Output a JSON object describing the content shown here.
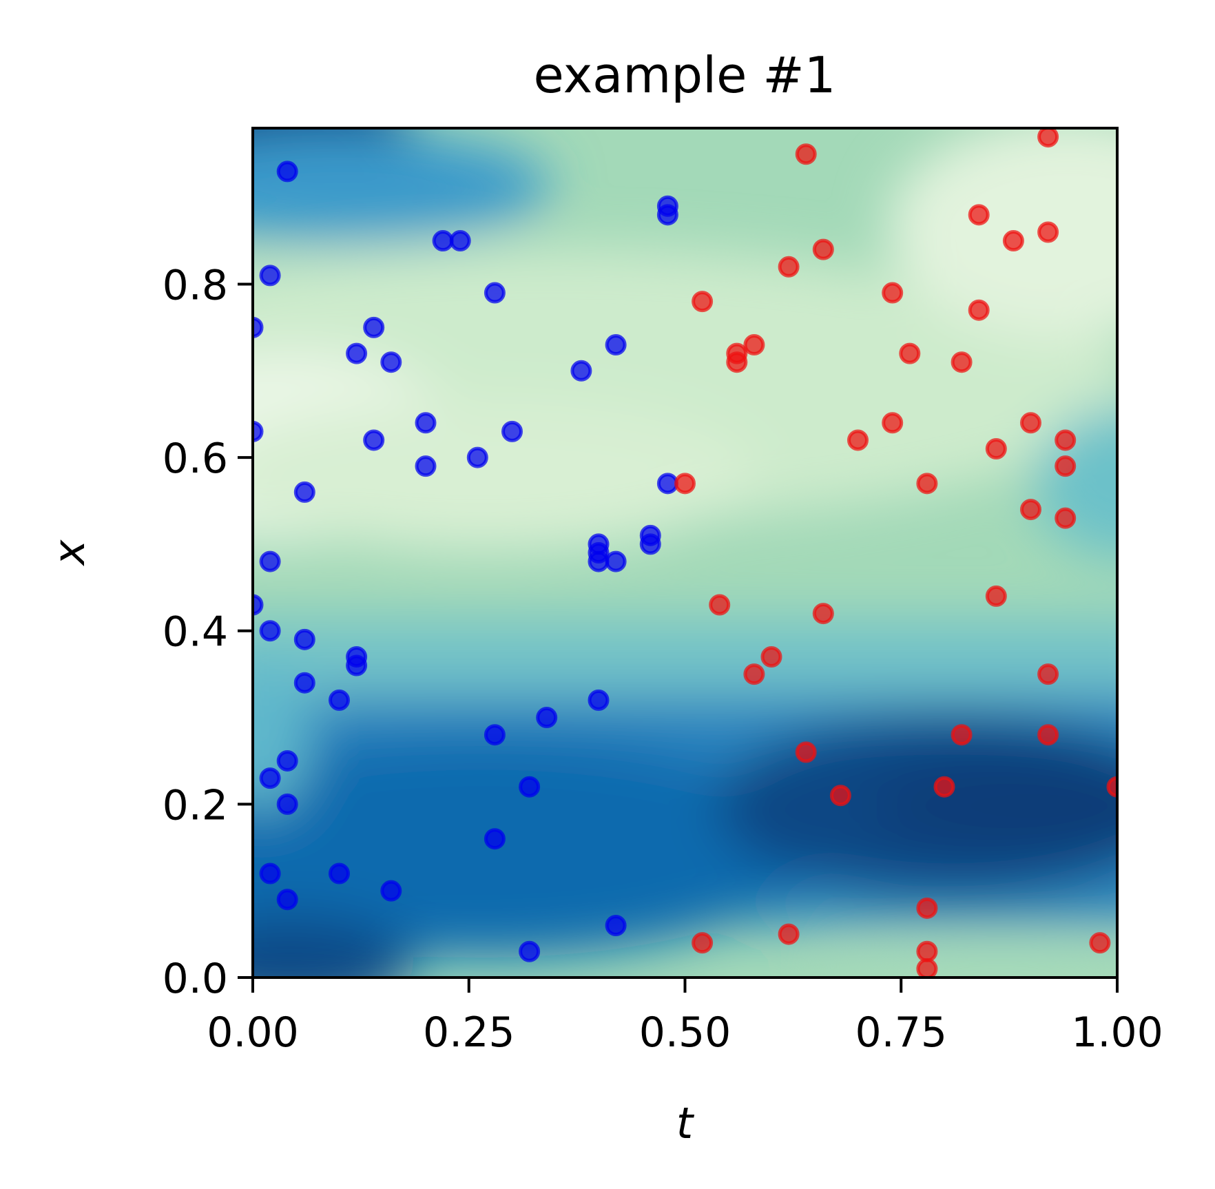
{
  "chart_data": {
    "type": "scatter",
    "title": "example #1",
    "xlabel": "t",
    "ylabel": "x",
    "xlim": [
      0,
      1
    ],
    "ylim": [
      0,
      0.98
    ],
    "xticks": [
      "0.00",
      "0.25",
      "0.50",
      "0.75",
      "1.00"
    ],
    "yticks": [
      "0.0",
      "0.2",
      "0.4",
      "0.6",
      "0.8"
    ],
    "xtick_values": [
      0,
      0.25,
      0.5,
      0.75,
      1.0
    ],
    "ytick_values": [
      0,
      0.2,
      0.4,
      0.6,
      0.8
    ],
    "background": "heatmap (blue-green colormap)",
    "series": [
      {
        "color": "#0000ee",
        "points": [
          [
            0.04,
            0.93
          ],
          [
            0.02,
            0.81
          ],
          [
            0.0,
            0.75
          ],
          [
            0.0,
            0.63
          ],
          [
            0.06,
            0.56
          ],
          [
            0.02,
            0.48
          ],
          [
            0.0,
            0.43
          ],
          [
            0.02,
            0.4
          ],
          [
            0.06,
            0.39
          ],
          [
            0.06,
            0.34
          ],
          [
            0.04,
            0.25
          ],
          [
            0.02,
            0.23
          ],
          [
            0.04,
            0.2
          ],
          [
            0.02,
            0.12
          ],
          [
            0.04,
            0.09
          ],
          [
            0.12,
            0.72
          ],
          [
            0.14,
            0.75
          ],
          [
            0.16,
            0.71
          ],
          [
            0.14,
            0.62
          ],
          [
            0.12,
            0.37
          ],
          [
            0.12,
            0.36
          ],
          [
            0.1,
            0.32
          ],
          [
            0.1,
            0.12
          ],
          [
            0.16,
            0.1
          ],
          [
            0.22,
            0.85
          ],
          [
            0.24,
            0.85
          ],
          [
            0.28,
            0.79
          ],
          [
            0.2,
            0.64
          ],
          [
            0.2,
            0.59
          ],
          [
            0.26,
            0.6
          ],
          [
            0.3,
            0.63
          ],
          [
            0.28,
            0.28
          ],
          [
            0.28,
            0.16
          ],
          [
            0.34,
            0.3
          ],
          [
            0.32,
            0.22
          ],
          [
            0.32,
            0.03
          ],
          [
            0.38,
            0.7
          ],
          [
            0.42,
            0.73
          ],
          [
            0.4,
            0.5
          ],
          [
            0.4,
            0.49
          ],
          [
            0.4,
            0.48
          ],
          [
            0.42,
            0.48
          ],
          [
            0.4,
            0.32
          ],
          [
            0.42,
            0.06
          ],
          [
            0.48,
            0.89
          ],
          [
            0.48,
            0.88
          ],
          [
            0.48,
            0.57
          ],
          [
            0.46,
            0.51
          ],
          [
            0.46,
            0.5
          ]
        ]
      },
      {
        "color": "#ee1111",
        "points": [
          [
            0.5,
            0.57
          ],
          [
            0.52,
            0.78
          ],
          [
            0.56,
            0.72
          ],
          [
            0.56,
            0.71
          ],
          [
            0.58,
            0.73
          ],
          [
            0.54,
            0.43
          ],
          [
            0.58,
            0.35
          ],
          [
            0.6,
            0.37
          ],
          [
            0.52,
            0.04
          ],
          [
            0.64,
            0.95
          ],
          [
            0.62,
            0.82
          ],
          [
            0.66,
            0.84
          ],
          [
            0.66,
            0.42
          ],
          [
            0.64,
            0.26
          ],
          [
            0.68,
            0.21
          ],
          [
            0.62,
            0.05
          ],
          [
            0.7,
            0.62
          ],
          [
            0.74,
            0.79
          ],
          [
            0.74,
            0.64
          ],
          [
            0.76,
            0.72
          ],
          [
            0.78,
            0.57
          ],
          [
            0.78,
            0.08
          ],
          [
            0.78,
            0.03
          ],
          [
            0.78,
            0.01
          ],
          [
            0.8,
            0.22
          ],
          [
            0.82,
            0.71
          ],
          [
            0.82,
            0.28
          ],
          [
            0.84,
            0.88
          ],
          [
            0.84,
            0.77
          ],
          [
            0.86,
            0.61
          ],
          [
            0.86,
            0.44
          ],
          [
            0.88,
            0.85
          ],
          [
            0.9,
            0.64
          ],
          [
            0.9,
            0.54
          ],
          [
            0.92,
            0.97
          ],
          [
            0.92,
            0.86
          ],
          [
            0.92,
            0.35
          ],
          [
            0.92,
            0.28
          ],
          [
            0.94,
            0.62
          ],
          [
            0.94,
            0.59
          ],
          [
            0.94,
            0.53
          ],
          [
            0.98,
            0.04
          ],
          [
            1.0,
            0.22
          ]
        ]
      }
    ]
  }
}
